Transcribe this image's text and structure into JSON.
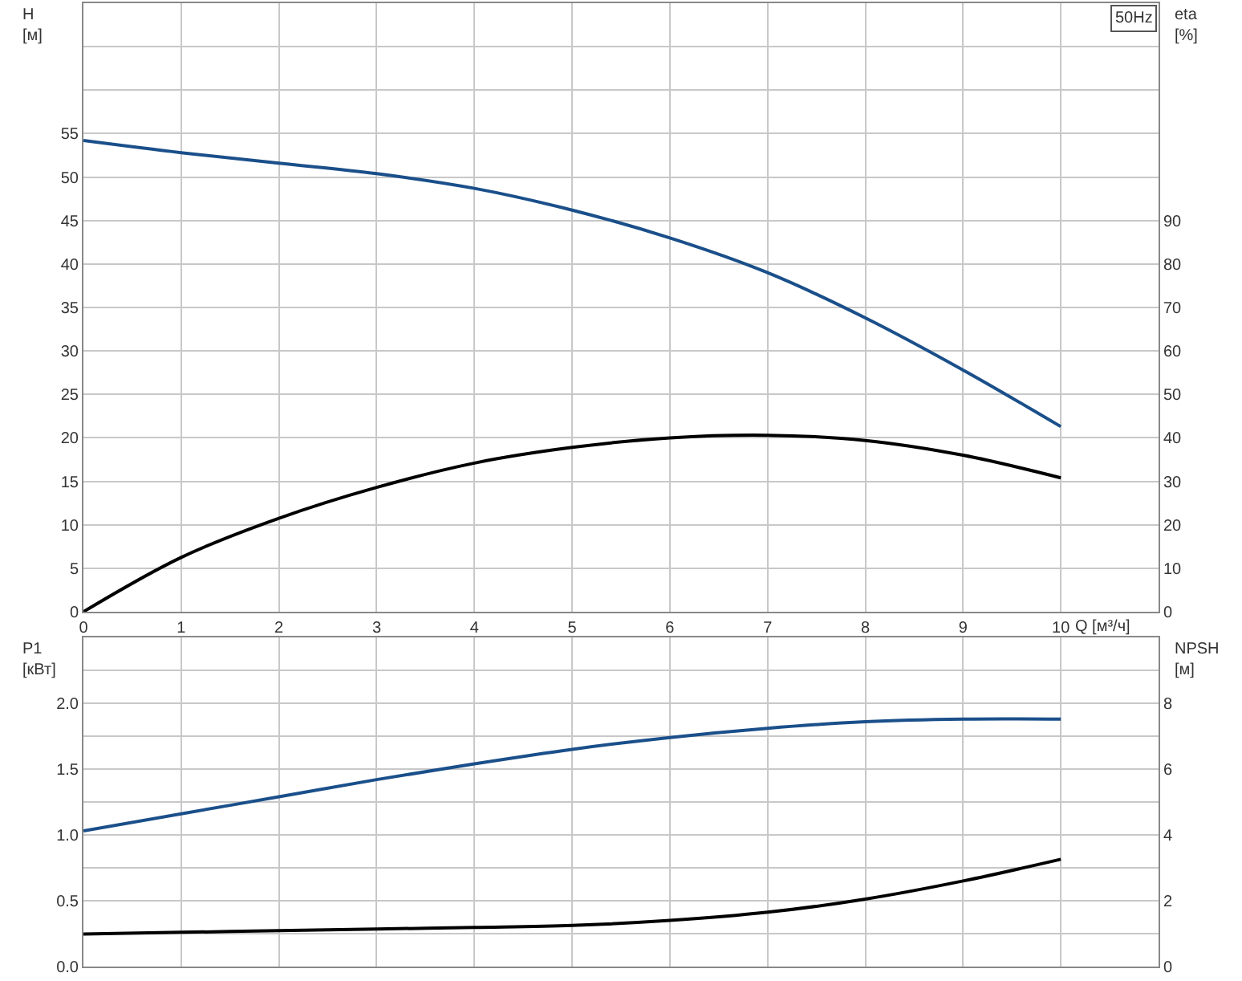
{
  "chart_data": [
    {
      "type": "line",
      "xlabel": "Q [м³/ч]",
      "ylabel": "H\n[м]",
      "y2label": "eta\n[%]",
      "annotations": [
        "50Hz"
      ],
      "grid": true,
      "marker": "none",
      "line_style": "solid",
      "x": [
        0,
        1,
        2,
        3,
        4,
        5,
        6,
        7,
        8,
        9,
        10
      ],
      "series": [
        {
          "color": "#1a4f8a",
          "values": [
            54.2,
            52.8,
            51.6,
            50.4,
            48.7,
            46.2,
            43,
            39,
            33.8,
            27.8,
            21.3
          ]
        },
        {
          "color": "#000000",
          "axis": "y2",
          "values": [
            0,
            12.5,
            21.5,
            28.6,
            34.2,
            37.8,
            40,
            40.6,
            39.4,
            36,
            30.8
          ]
        }
      ],
      "xlim": [
        0,
        11
      ],
      "xticks": [
        0,
        1,
        2,
        3,
        4,
        5,
        6,
        7,
        8,
        9,
        10
      ],
      "ylim": [
        0,
        70
      ],
      "yticks": [
        0,
        5,
        10,
        15,
        20,
        25,
        30,
        35,
        40,
        45,
        50,
        55,
        {
          "value": 60,
          "label": null
        },
        {
          "value": 65,
          "label": null
        }
      ],
      "y2lim": [
        0,
        140
      ],
      "y2ticks": [
        0,
        10,
        20,
        30,
        40,
        50,
        60,
        70,
        80,
        90
      ]
    },
    {
      "type": "line",
      "ylabel": "P1\n[кВт]",
      "y2label": "NPSH\n[м]",
      "grid": true,
      "marker": "none",
      "line_style": "solid",
      "tick_labels": "y",
      "x": [
        0,
        1,
        2,
        3,
        4,
        5,
        6,
        7,
        8,
        9,
        10
      ],
      "series": [
        {
          "color": "#1a4f8a",
          "values": [
            1.03,
            1.16,
            1.29,
            1.42,
            1.54,
            1.65,
            1.74,
            1.81,
            1.86,
            1.88,
            1.88
          ]
        },
        {
          "color": "#000000",
          "axis": "y2",
          "values": [
            0.99,
            1.04,
            1.09,
            1.14,
            1.19,
            1.25,
            1.4,
            1.65,
            2.05,
            2.6,
            3.26
          ]
        }
      ],
      "xlim": [
        0,
        11
      ],
      "xticks": [
        {
          "value": 0,
          "label": null
        },
        {
          "value": 1,
          "label": null
        },
        {
          "value": 2,
          "label": null
        },
        {
          "value": 3,
          "label": null
        },
        {
          "value": 4,
          "label": null
        },
        {
          "value": 5,
          "label": null
        },
        {
          "value": 6,
          "label": null
        },
        {
          "value": 7,
          "label": null
        },
        {
          "value": 8,
          "label": null
        },
        {
          "value": 9,
          "label": null
        },
        {
          "value": 10,
          "label": null
        }
      ],
      "ylim": [
        0,
        2.5
      ],
      "yticks": [
        {
          "value": 0,
          "label": "0.0"
        },
        {
          "value": 0.25,
          "label": null
        },
        {
          "value": 0.5,
          "label": "0.5"
        },
        {
          "value": 0.75,
          "label": null
        },
        {
          "value": 1.0,
          "label": "1.0"
        },
        {
          "value": 1.25,
          "label": null
        },
        {
          "value": 1.5,
          "label": "1.5"
        },
        {
          "value": 1.75,
          "label": null
        },
        {
          "value": 2.0,
          "label": "2.0"
        },
        {
          "value": 2.25,
          "label": null
        }
      ],
      "y2lim": [
        0,
        10
      ],
      "y2ticks": [
        0,
        2,
        4,
        6,
        8
      ]
    }
  ]
}
